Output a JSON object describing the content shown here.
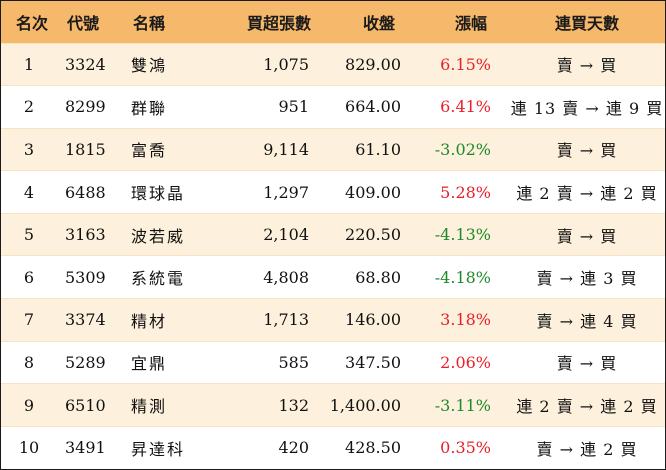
{
  "colors": {
    "header_bg": "#f6b86a",
    "row_alt_bg": "#fdf0dc",
    "up": "#e8202a",
    "down": "#1e8a2a"
  },
  "headers": {
    "rank": "名次",
    "code": "代號",
    "name": "名稱",
    "volume": "買超張數",
    "close": "收盤",
    "change": "漲幅",
    "days": "連買天數"
  },
  "rows": [
    {
      "rank": "1",
      "code": "3324",
      "name": "雙鴻",
      "volume": "1,075",
      "close": "829.00",
      "change": "6.15%",
      "dir": "up",
      "days": "賣 → 買"
    },
    {
      "rank": "2",
      "code": "8299",
      "name": "群聯",
      "volume": "951",
      "close": "664.00",
      "change": "6.41%",
      "dir": "up",
      "days": "連 13 賣 → 連 9 買"
    },
    {
      "rank": "3",
      "code": "1815",
      "name": "富喬",
      "volume": "9,114",
      "close": "61.10",
      "change": "-3.02%",
      "dir": "down",
      "days": "賣 → 買"
    },
    {
      "rank": "4",
      "code": "6488",
      "name": "環球晶",
      "volume": "1,297",
      "close": "409.00",
      "change": "5.28%",
      "dir": "up",
      "days": "連 2 賣 → 連 2 買"
    },
    {
      "rank": "5",
      "code": "3163",
      "name": "波若威",
      "volume": "2,104",
      "close": "220.50",
      "change": "-4.13%",
      "dir": "down",
      "days": "賣 → 買"
    },
    {
      "rank": "6",
      "code": "5309",
      "name": "系統電",
      "volume": "4,808",
      "close": "68.80",
      "change": "-4.18%",
      "dir": "down",
      "days": "賣 → 連 3 買"
    },
    {
      "rank": "7",
      "code": "3374",
      "name": "精材",
      "volume": "1,713",
      "close": "146.00",
      "change": "3.18%",
      "dir": "up",
      "days": "賣 → 連 4 買"
    },
    {
      "rank": "8",
      "code": "5289",
      "name": "宜鼎",
      "volume": "585",
      "close": "347.50",
      "change": "2.06%",
      "dir": "up",
      "days": "賣 → 買"
    },
    {
      "rank": "9",
      "code": "6510",
      "name": "精測",
      "volume": "132",
      "close": "1,400.00",
      "change": "-3.11%",
      "dir": "down",
      "days": "連 2 賣 → 連 2 買"
    },
    {
      "rank": "10",
      "code": "3491",
      "name": "昇達科",
      "volume": "420",
      "close": "428.50",
      "change": "0.35%",
      "dir": "up",
      "days": "賣 → 連 2 買"
    }
  ]
}
